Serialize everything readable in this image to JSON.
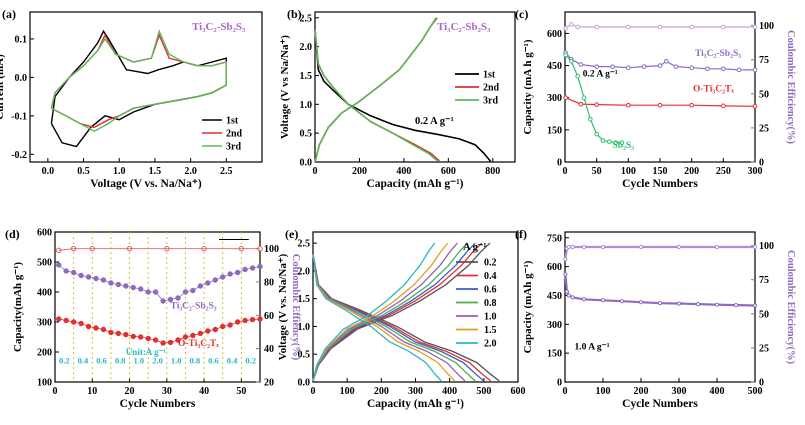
{
  "chart_data": [
    {
      "panel": "(a)",
      "type": "line",
      "xlabel": "Voltage (V vs. Na/Na⁺)",
      "ylabel": "Current (mA)",
      "xlim": [
        -0.25,
        3.0
      ],
      "ylim": [
        -0.22,
        0.17
      ],
      "xticks": [
        0.0,
        0.5,
        1.0,
        1.5,
        2.0,
        2.5
      ],
      "yticks": [
        -0.2,
        -0.1,
        0.0,
        0.1
      ],
      "xtick_labels": [
        "0.0",
        "0.5",
        "1.0",
        "1.5",
        "2.0",
        "2.5"
      ],
      "ytick_labels": [
        "-0.2",
        "-0.1",
        "0.0",
        "0.1"
      ],
      "annotation": "Ti₃C₂-Sb₂S₃",
      "legend_position": "bottom-right",
      "series": [
        {
          "name": "1st",
          "color": "#000000",
          "x": [
            0.05,
            0.2,
            0.4,
            0.6,
            0.8,
            1.0,
            1.2,
            1.5,
            1.8,
            2.1,
            2.3,
            2.5,
            2.5,
            2.3,
            2.1,
            1.9,
            1.75,
            1.55,
            1.4,
            1.1,
            0.85,
            0.78,
            0.7,
            0.5,
            0.3,
            0.1,
            0.05
          ],
          "y": [
            -0.12,
            -0.17,
            -0.18,
            -0.13,
            -0.1,
            -0.11,
            -0.09,
            -0.07,
            -0.06,
            -0.05,
            -0.04,
            -0.02,
            0.05,
            0.04,
            0.03,
            0.04,
            0.03,
            0.02,
            0.01,
            0.02,
            0.1,
            0.12,
            0.09,
            0.04,
            0.0,
            -0.05,
            -0.12
          ]
        },
        {
          "name": "2nd",
          "color": "#e03030",
          "x": [
            0.05,
            0.25,
            0.45,
            0.65,
            0.85,
            1.0,
            1.2,
            1.5,
            1.8,
            2.1,
            2.3,
            2.5,
            2.5,
            2.3,
            2.1,
            1.9,
            1.7,
            1.56,
            1.45,
            1.2,
            0.95,
            0.8,
            0.7,
            0.5,
            0.3,
            0.1,
            0.05
          ],
          "y": [
            -0.08,
            -0.1,
            -0.12,
            -0.13,
            -0.11,
            -0.1,
            -0.08,
            -0.07,
            -0.06,
            -0.05,
            -0.04,
            -0.02,
            0.04,
            0.03,
            0.03,
            0.04,
            0.05,
            0.11,
            0.05,
            0.04,
            0.06,
            0.11,
            0.07,
            0.03,
            0.0,
            -0.04,
            -0.08
          ]
        },
        {
          "name": "3rd",
          "color": "#5cb85c",
          "x": [
            0.05,
            0.25,
            0.45,
            0.65,
            0.85,
            1.0,
            1.2,
            1.5,
            1.8,
            2.1,
            2.3,
            2.5,
            2.5,
            2.3,
            2.1,
            1.9,
            1.7,
            1.56,
            1.45,
            1.2,
            0.95,
            0.8,
            0.7,
            0.5,
            0.3,
            0.1,
            0.05
          ],
          "y": [
            -0.08,
            -0.1,
            -0.12,
            -0.14,
            -0.12,
            -0.1,
            -0.08,
            -0.07,
            -0.06,
            -0.05,
            -0.04,
            -0.02,
            0.04,
            0.03,
            0.03,
            0.04,
            0.06,
            0.12,
            0.05,
            0.04,
            0.06,
            0.1,
            0.07,
            0.03,
            0.0,
            -0.04,
            -0.08
          ]
        }
      ]
    },
    {
      "panel": "(b)",
      "type": "line",
      "xlabel": "Capacity (mAh g⁻¹)",
      "ylabel": "Voltage (V vs Na/Na⁺)",
      "xlim": [
        0,
        900
      ],
      "ylim": [
        0,
        2.6
      ],
      "xticks": [
        0,
        200,
        400,
        600,
        800
      ],
      "yticks": [
        0.0,
        0.5,
        1.0,
        1.5,
        2.0,
        2.5
      ],
      "xtick_labels": [
        "0",
        "200",
        "400",
        "600",
        "800"
      ],
      "ytick_labels": [
        "0.0",
        "0.5",
        "1.0",
        "1.5",
        "2.0",
        "2.5"
      ],
      "annotation": "Ti₃C₂-Sb₂S₃",
      "rate_label": "0.2 A g⁻¹",
      "legend_position": "right",
      "series": [
        {
          "name": "1st",
          "color": "#000000",
          "discharge": {
            "x": [
              0,
              15,
              40,
              80,
              150,
              250,
              350,
              450,
              550,
              650,
              720,
              760,
              790
            ],
            "y": [
              2.3,
              1.6,
              1.4,
              1.25,
              1.0,
              0.8,
              0.65,
              0.55,
              0.48,
              0.4,
              0.3,
              0.15,
              0.01
            ]
          },
          "charge": {
            "x": [],
            "y": []
          }
        },
        {
          "name": "2nd",
          "color": "#e03030",
          "discharge": {
            "x": [
              0,
              15,
              40,
              80,
              150,
              250,
              350,
              450,
              520,
              560
            ],
            "y": [
              2.3,
              1.7,
              1.5,
              1.3,
              1.0,
              0.7,
              0.5,
              0.3,
              0.15,
              0.02
            ]
          },
          "charge": {
            "x": [
              0,
              20,
              60,
              120,
              200,
              300,
              380,
              430,
              480,
              520,
              550
            ],
            "y": [
              0.0,
              0.3,
              0.6,
              0.85,
              1.05,
              1.35,
              1.6,
              1.85,
              2.1,
              2.35,
              2.5
            ]
          }
        },
        {
          "name": "3rd",
          "color": "#5cb85c",
          "discharge": {
            "x": [
              0,
              15,
              40,
              80,
              150,
              250,
              350,
              440,
              510,
              550
            ],
            "y": [
              2.3,
              1.7,
              1.5,
              1.3,
              1.0,
              0.7,
              0.5,
              0.3,
              0.15,
              0.02
            ]
          },
          "charge": {
            "x": [
              0,
              20,
              60,
              120,
              200,
              300,
              380,
              430,
              480,
              520,
              545
            ],
            "y": [
              0.0,
              0.3,
              0.6,
              0.85,
              1.05,
              1.35,
              1.6,
              1.85,
              2.1,
              2.35,
              2.5
            ]
          }
        }
      ]
    },
    {
      "panel": "(c)",
      "type": "scatter",
      "xlabel": "Cycle Numbers",
      "ylabel": "Capacity (mA h g⁻¹)",
      "y2label": "Coulombic Efficiency(%)",
      "xlim": [
        0,
        300
      ],
      "ylim": [
        0,
        700
      ],
      "y2lim": [
        0,
        110
      ],
      "xticks": [
        0,
        50,
        100,
        150,
        200,
        250,
        300
      ],
      "yticks": [
        0,
        150,
        300,
        450,
        600
      ],
      "y2ticks": [
        0,
        25,
        50,
        75,
        100
      ],
      "xtick_labels": [
        "0",
        "50",
        "100",
        "150",
        "200",
        "250",
        "300"
      ],
      "ytick_labels": [
        "0",
        "150",
        "300",
        "450",
        "600"
      ],
      "y2tick_labels": [
        "0",
        "25",
        "50",
        "75",
        "100"
      ],
      "rate_label": "0.2 A g⁻¹",
      "series": [
        {
          "name": "Ti₃C₂-Sb₂S₃",
          "color": "#8e6bbf",
          "x": [
            1,
            10,
            25,
            50,
            75,
            100,
            125,
            150,
            160,
            175,
            200,
            225,
            250,
            275,
            300
          ],
          "y": [
            510,
            480,
            455,
            445,
            445,
            440,
            445,
            450,
            470,
            445,
            440,
            435,
            435,
            430,
            430
          ]
        },
        {
          "name": "O-Ti₃C₂Tₓ",
          "color": "#e03030",
          "x": [
            1,
            25,
            50,
            100,
            150,
            200,
            250,
            300
          ],
          "y": [
            300,
            270,
            268,
            265,
            265,
            265,
            262,
            260
          ]
        },
        {
          "name": "Sb₂S₃",
          "color": "#2fbf71",
          "x": [
            1,
            10,
            20,
            30,
            40,
            50,
            60,
            70,
            80,
            90
          ],
          "y": [
            500,
            470,
            400,
            300,
            200,
            130,
            100,
            95,
            90,
            90
          ]
        },
        {
          "name": "Coulombic Efficiency",
          "color": "#c9a0dc",
          "axis": "y2",
          "x": [
            1,
            10,
            20,
            50,
            100,
            150,
            200,
            250,
            300
          ],
          "y": [
            98,
            101,
            99,
            99,
            99,
            99,
            99,
            99,
            99
          ]
        }
      ]
    },
    {
      "panel": "(d)",
      "type": "scatter",
      "xlabel": "Cycle Numbers",
      "ylabel": "Capacity(mAh g⁻¹)",
      "y2label": "Coulombic Effiency(%)",
      "xlim": [
        0,
        55
      ],
      "ylim": [
        100,
        600
      ],
      "y2lim": [
        20,
        110
      ],
      "xticks": [
        0,
        10,
        20,
        30,
        40,
        50
      ],
      "yticks": [
        100,
        200,
        300,
        400,
        500,
        600
      ],
      "y2ticks": [
        20,
        40,
        60,
        80,
        100
      ],
      "xtick_labels": [
        "0",
        "10",
        "20",
        "30",
        "40",
        "50"
      ],
      "ytick_labels": [
        "100",
        "200",
        "300",
        "400",
        "500",
        "600"
      ],
      "y2tick_labels": [
        "20",
        "40",
        "60",
        "80",
        "100"
      ],
      "rate_unit": "Unit:A g⁻¹",
      "rate_labels": [
        "0.2",
        "0.4",
        "0.6",
        "0.8",
        "1.0",
        "2.0",
        "1.0",
        "0.8",
        "0.6",
        "0.4",
        "0.2"
      ],
      "series": [
        {
          "name": "Ti₃C₂-Sb₂S₃",
          "color": "#8e6bbf",
          "x": [
            1,
            3,
            5,
            7,
            9,
            11,
            13,
            15,
            17,
            19,
            21,
            23,
            25,
            27,
            29,
            31,
            33,
            35,
            37,
            39,
            41,
            43,
            45,
            47,
            49,
            51,
            53,
            55
          ],
          "y": [
            490,
            470,
            465,
            455,
            450,
            445,
            440,
            430,
            425,
            420,
            415,
            410,
            400,
            400,
            370,
            375,
            380,
            400,
            405,
            420,
            430,
            440,
            450,
            460,
            465,
            475,
            480,
            485
          ]
        },
        {
          "name": "O-Ti₃C₂Tₓ",
          "color": "#e03030",
          "x": [
            1,
            3,
            5,
            7,
            9,
            11,
            13,
            15,
            17,
            19,
            21,
            23,
            25,
            27,
            29,
            31,
            33,
            35,
            37,
            39,
            41,
            43,
            45,
            47,
            49,
            51,
            53,
            55
          ],
          "y": [
            310,
            305,
            300,
            295,
            285,
            280,
            275,
            265,
            262,
            258,
            252,
            250,
            245,
            240,
            230,
            232,
            240,
            250,
            255,
            262,
            270,
            275,
            285,
            290,
            300,
            305,
            308,
            310
          ]
        },
        {
          "name": "Coulombic Efficiency",
          "color": "#e06060",
          "axis": "y2",
          "x": [
            1,
            5,
            10,
            20,
            30,
            40,
            50,
            55
          ],
          "y": [
            99,
            100,
            100,
            100,
            100,
            100,
            100,
            100
          ]
        }
      ]
    },
    {
      "panel": "(e)",
      "type": "line",
      "xlabel": "Capacity (mAh g⁻¹)",
      "ylabel": "Voltage (V vs. Na/Na⁺)",
      "xlim": [
        0,
        600
      ],
      "ylim": [
        0,
        2.7
      ],
      "xticks": [
        0,
        100,
        200,
        300,
        400,
        500,
        600
      ],
      "yticks": [
        0.0,
        0.5,
        1.0,
        1.5,
        2.0,
        2.5
      ],
      "xtick_labels": [
        "0",
        "100",
        "200",
        "300",
        "400",
        "500",
        "600"
      ],
      "ytick_labels": [
        "0.0",
        "0.5",
        "1.0",
        "1.5",
        "2.0",
        "2.5"
      ],
      "legend_title": "A g⁻¹",
      "series": [
        {
          "name": "0.2",
          "color": "#555555",
          "capacity": 545
        },
        {
          "name": "0.4",
          "color": "#e03030",
          "capacity": 520
        },
        {
          "name": "0.6",
          "color": "#3a5bc7",
          "capacity": 500
        },
        {
          "name": "0.8",
          "color": "#4cae4c",
          "capacity": 475
        },
        {
          "name": "1.0",
          "color": "#9b59b6",
          "capacity": 445
        },
        {
          "name": "1.5",
          "color": "#e0a020",
          "capacity": 415
        },
        {
          "name": "2.0",
          "color": "#2ab7c5",
          "capacity": 375
        }
      ]
    },
    {
      "panel": "(f)",
      "type": "scatter",
      "xlabel": "Cycle Numbers",
      "ylabel": "Capacity (mAh g⁻¹)",
      "y2label": "Coulombic Efficiency(%)",
      "xlim": [
        0,
        500
      ],
      "ylim": [
        0,
        780
      ],
      "y2lim": [
        0,
        110
      ],
      "xticks": [
        0,
        100,
        200,
        300,
        400,
        500
      ],
      "yticks": [
        0,
        150,
        300,
        450,
        600,
        750
      ],
      "y2ticks": [
        0,
        25,
        50,
        75,
        100
      ],
      "xtick_labels": [
        "0",
        "100",
        "200",
        "300",
        "400",
        "500"
      ],
      "ytick_labels": [
        "0",
        "150",
        "300",
        "450",
        "600",
        "750"
      ],
      "y2tick_labels": [
        "0",
        "25",
        "50",
        "75",
        "100"
      ],
      "rate_label": "1.0 A g⁻¹",
      "series": [
        {
          "name": "Capacity",
          "color": "#8e6bbf",
          "x": [
            1,
            5,
            10,
            20,
            50,
            100,
            150,
            200,
            250,
            300,
            350,
            400,
            450,
            500
          ],
          "y": [
            560,
            470,
            450,
            440,
            430,
            425,
            420,
            415,
            410,
            408,
            405,
            402,
            400,
            398
          ]
        },
        {
          "name": "Coulombic Efficiency",
          "color": "#b08fd8",
          "axis": "y2",
          "x": [
            1,
            5,
            10,
            20,
            50,
            100,
            200,
            300,
            400,
            500
          ],
          "y": [
            90,
            98,
            99,
            99,
            99,
            99,
            99,
            99,
            99,
            99
          ]
        }
      ]
    }
  ]
}
